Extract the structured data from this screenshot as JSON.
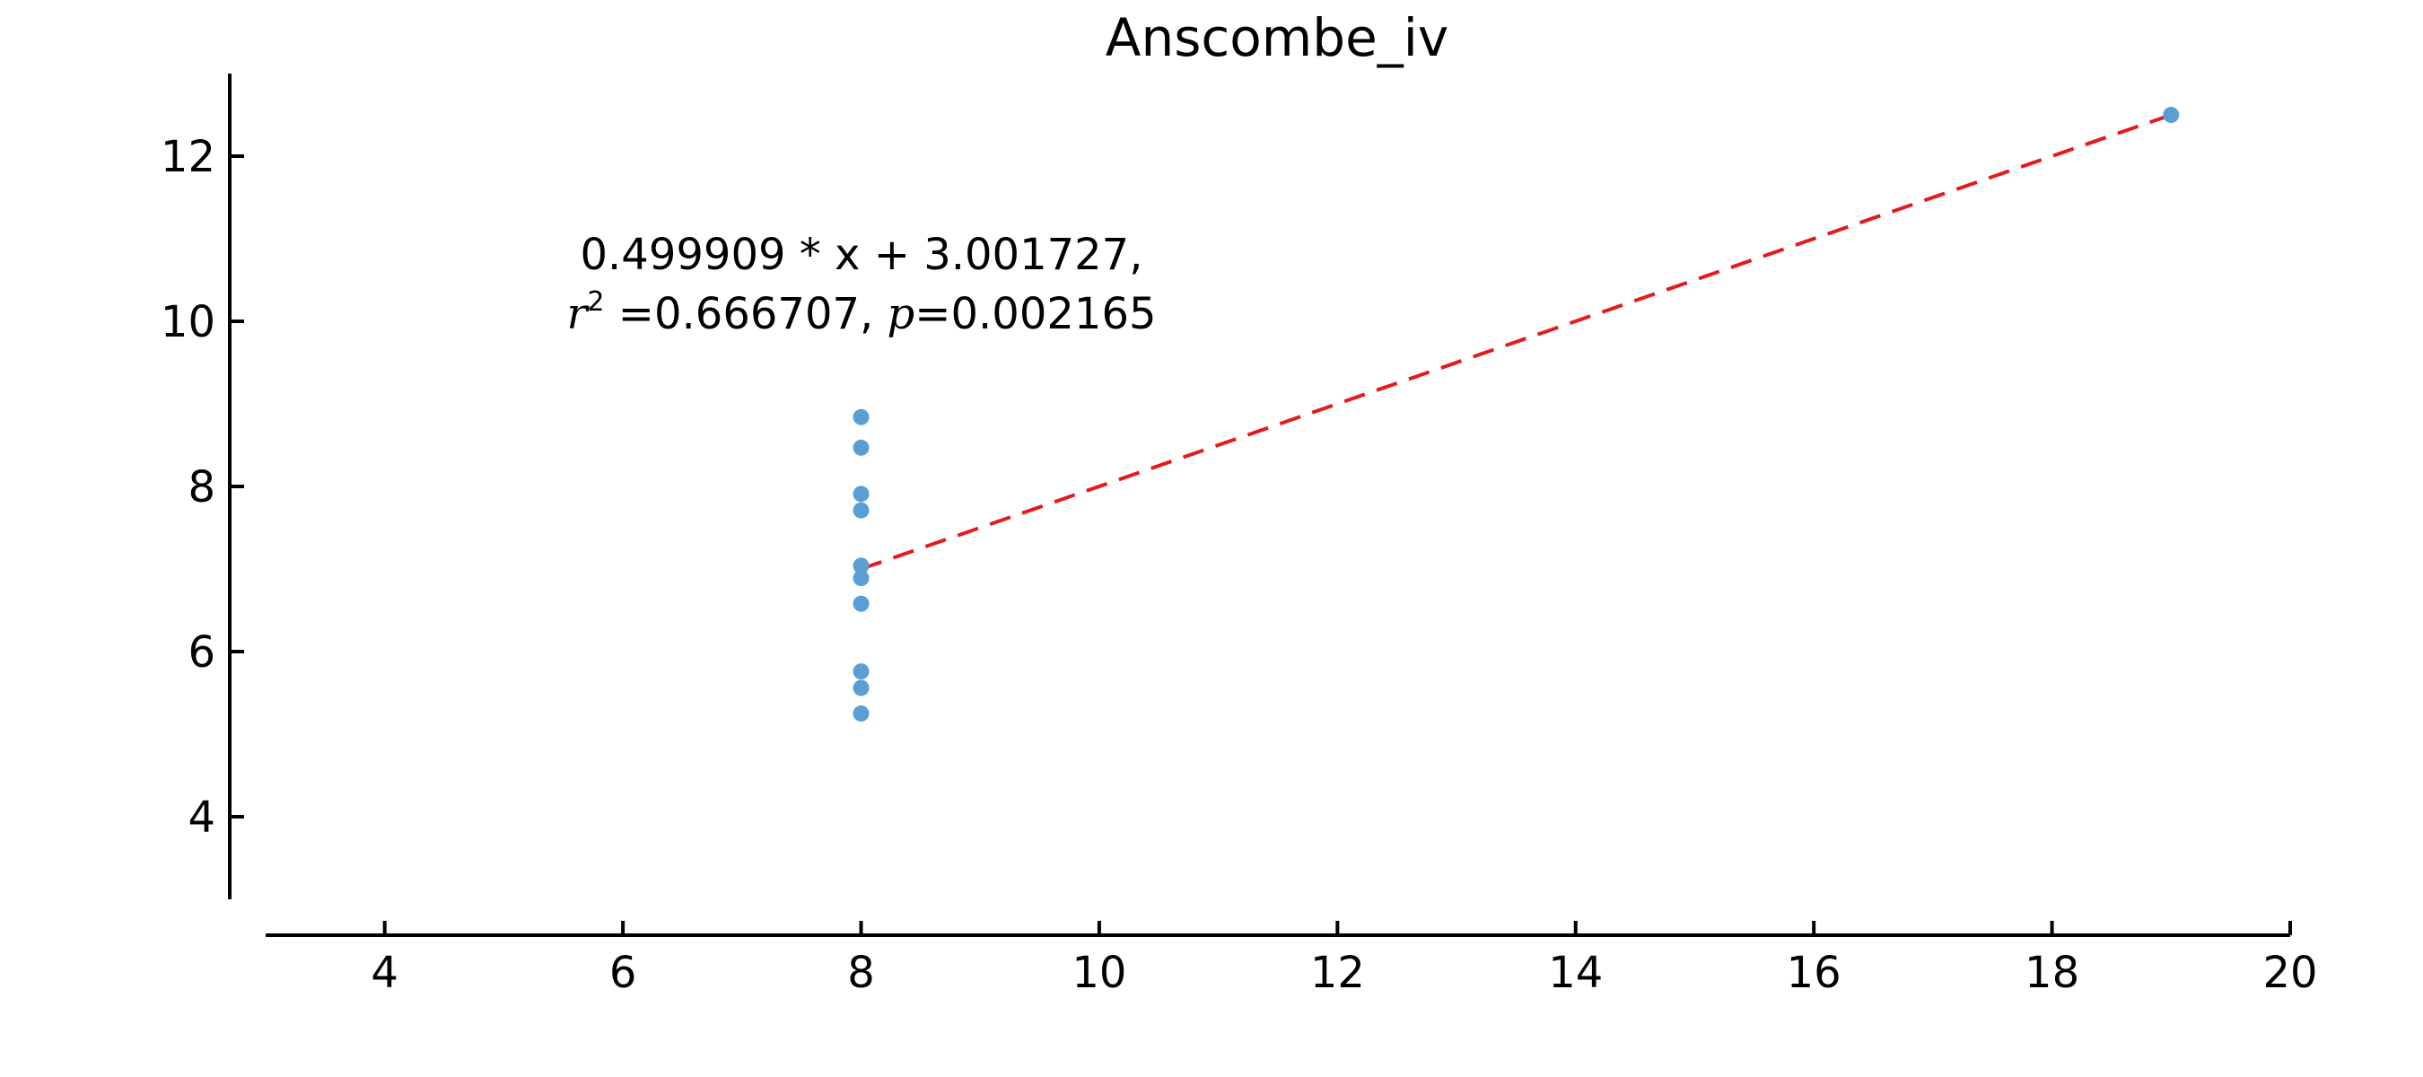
{
  "chart_data": {
    "type": "scatter",
    "title": "Anscombe_iv",
    "xlabel": "",
    "ylabel": "",
    "xlim": [
      3,
      20
    ],
    "ylim": [
      3,
      13
    ],
    "x_ticks": [
      4,
      6,
      8,
      10,
      12,
      14,
      16,
      18,
      20
    ],
    "y_ticks": [
      4,
      6,
      8,
      10,
      12
    ],
    "grid": false,
    "points": [
      {
        "x": 8,
        "y": 6.58
      },
      {
        "x": 8,
        "y": 5.76
      },
      {
        "x": 8,
        "y": 7.71
      },
      {
        "x": 8,
        "y": 8.84
      },
      {
        "x": 8,
        "y": 8.47
      },
      {
        "x": 8,
        "y": 7.04
      },
      {
        "x": 8,
        "y": 5.25
      },
      {
        "x": 19,
        "y": 12.5
      },
      {
        "x": 8,
        "y": 5.56
      },
      {
        "x": 8,
        "y": 7.91
      },
      {
        "x": 8,
        "y": 6.89
      }
    ],
    "fit": {
      "slope": 0.499909,
      "intercept": 3.001727,
      "x_range": [
        8,
        19
      ]
    },
    "annotation": {
      "line1": "0.499909 * x + 3.001727,",
      "r_symbol": "r",
      "r_exp": "2",
      "r_value": " =0.666707, ",
      "p_symbol": "p",
      "p_value": "=0.002165"
    },
    "colors": {
      "points": "#5a9fd4",
      "fit_line": "#e41a1c"
    }
  }
}
